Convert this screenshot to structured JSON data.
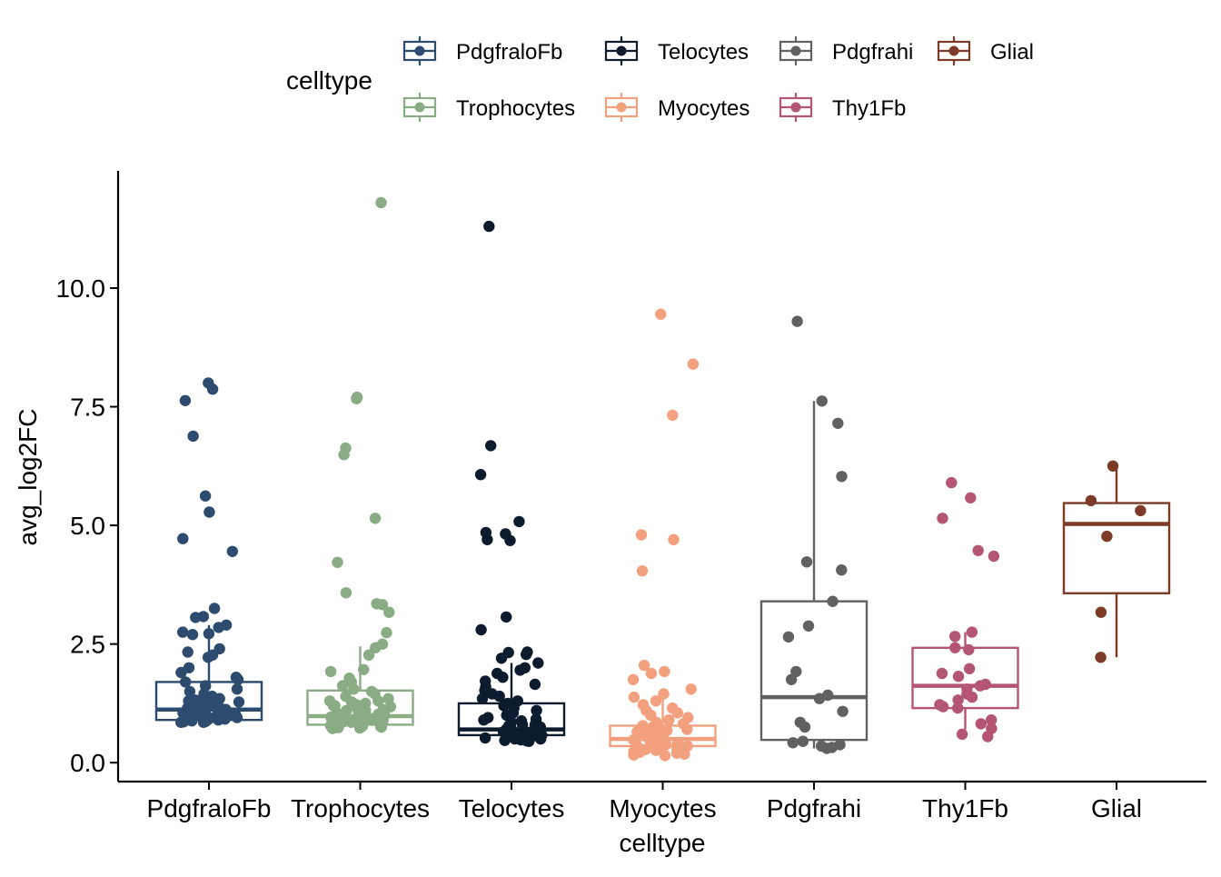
{
  "chart_data": {
    "type": "box",
    "title": "",
    "xlabel": "celltype",
    "ylabel": "avg_log2FC",
    "ylim": [
      -0.4,
      12.3
    ],
    "yticks": [
      0.0,
      2.5,
      5.0,
      7.5,
      10.0
    ],
    "ytick_labels": [
      "0.0",
      "2.5",
      "5.0",
      "7.5",
      "10.0"
    ],
    "grid": false,
    "legend": {
      "title": "celltype",
      "position": "top"
    },
    "categories": [
      "PdgfraloFb",
      "Trophocytes",
      "Telocytes",
      "Myocytes",
      "Pdgfrahi",
      "Thy1Fb",
      "Glial"
    ],
    "series": [
      {
        "name": "PdgfraloFb",
        "color": "#2c4b6e",
        "box": {
          "q1": 0.9,
          "median": 1.12,
          "q3": 1.7,
          "whisker_low": 0.85,
          "whisker_high": 2.9
        },
        "points": [
          8.0,
          7.87,
          7.63,
          6.88,
          5.62,
          5.28,
          4.72,
          4.45,
          3.25,
          3.08,
          3.06,
          2.9,
          2.85,
          2.75,
          2.72,
          2.7,
          2.4,
          2.33,
          2.27,
          2.22,
          2.0,
          1.9,
          1.8,
          1.75,
          1.7,
          1.62,
          1.55,
          1.5,
          1.45,
          1.4,
          1.35,
          1.32,
          1.3,
          1.28,
          1.25,
          1.22,
          1.2,
          1.18,
          1.15,
          1.12,
          1.1,
          1.08,
          1.05,
          1.02,
          1.0,
          1.0,
          0.98,
          0.96,
          0.95,
          0.93,
          0.92,
          0.9,
          0.9,
          0.88,
          0.87,
          0.86,
          0.85,
          0.85,
          1.15,
          1.05,
          0.95,
          1.25,
          1.1,
          0.92,
          1.35
        ]
      },
      {
        "name": "Trophocytes",
        "color": "#8aac84",
        "box": {
          "q1": 0.8,
          "median": 0.98,
          "q3": 1.52,
          "whisker_low": 0.72,
          "whisker_high": 2.45
        },
        "points": [
          11.8,
          7.7,
          7.67,
          6.63,
          6.49,
          5.15,
          4.22,
          3.58,
          3.35,
          3.33,
          3.17,
          2.74,
          2.5,
          2.42,
          2.27,
          1.96,
          1.92,
          1.78,
          1.7,
          1.62,
          1.55,
          1.5,
          1.45,
          1.4,
          1.35,
          1.3,
          1.28,
          1.25,
          1.22,
          1.2,
          1.18,
          1.15,
          1.12,
          1.1,
          1.08,
          1.05,
          1.02,
          1.0,
          0.98,
          0.96,
          0.95,
          0.93,
          0.92,
          0.9,
          0.88,
          0.86,
          0.85,
          0.83,
          0.82,
          0.8,
          0.78,
          0.77,
          0.76,
          0.75,
          0.74,
          0.73,
          0.72,
          1.1,
          0.95,
          1.2,
          0.85,
          1.0,
          0.9,
          1.3
        ]
      },
      {
        "name": "Telocytes",
        "color": "#0d1b2e",
        "box": {
          "q1": 0.58,
          "median": 0.7,
          "q3": 1.25,
          "whisker_low": 0.5,
          "whisker_high": 2.1
        },
        "points": [
          11.3,
          6.68,
          6.07,
          5.08,
          4.85,
          4.82,
          4.7,
          4.68,
          3.07,
          2.8,
          2.33,
          2.32,
          2.28,
          2.2,
          2.1,
          2.0,
          1.95,
          1.88,
          1.8,
          1.72,
          1.65,
          1.6,
          1.52,
          1.45,
          1.4,
          1.35,
          1.3,
          1.25,
          1.2,
          1.15,
          1.1,
          1.05,
          1.0,
          0.95,
          0.92,
          0.88,
          0.85,
          0.82,
          0.8,
          0.78,
          0.75,
          0.72,
          0.7,
          0.68,
          0.66,
          0.64,
          0.62,
          0.6,
          0.58,
          0.56,
          0.55,
          0.54,
          0.52,
          0.5,
          0.5,
          0.48,
          0.47,
          0.46,
          0.45,
          0.7,
          0.6,
          0.8,
          0.55,
          0.9,
          0.65
        ]
      },
      {
        "name": "Myocytes",
        "color": "#f2a07e",
        "box": {
          "q1": 0.35,
          "median": 0.5,
          "q3": 0.78,
          "whisker_low": 0.15,
          "whisker_high": 1.4
        },
        "points": [
          9.45,
          8.4,
          7.32,
          4.8,
          4.7,
          4.04,
          2.05,
          1.92,
          1.88,
          1.75,
          1.55,
          1.45,
          1.38,
          1.3,
          1.22,
          1.15,
          1.1,
          1.05,
          1.0,
          0.95,
          0.9,
          0.85,
          0.82,
          0.78,
          0.75,
          0.72,
          0.7,
          0.68,
          0.65,
          0.62,
          0.6,
          0.58,
          0.55,
          0.52,
          0.5,
          0.48,
          0.45,
          0.42,
          0.4,
          0.38,
          0.35,
          0.32,
          0.3,
          0.28,
          0.26,
          0.24,
          0.22,
          0.2,
          0.18,
          0.16,
          0.15,
          0.5,
          0.4,
          0.6,
          0.3,
          0.45
        ]
      },
      {
        "name": "Pdgfrahi",
        "color": "#616161",
        "box": {
          "q1": 0.48,
          "median": 1.38,
          "q3": 3.4,
          "whisker_low": 0.3,
          "whisker_high": 7.62
        },
        "points": [
          9.3,
          7.62,
          7.15,
          6.03,
          4.23,
          4.06,
          3.4,
          2.88,
          2.65,
          1.92,
          1.75,
          1.42,
          1.35,
          1.08,
          0.85,
          0.75,
          0.45,
          0.42,
          0.38,
          0.35,
          0.32,
          0.3
        ]
      },
      {
        "name": "Thy1Fb",
        "color": "#b55574",
        "box": {
          "q1": 1.15,
          "median": 1.62,
          "q3": 2.42,
          "whisker_low": 0.7,
          "whisker_high": 2.75
        },
        "points": [
          5.9,
          5.58,
          5.15,
          4.47,
          4.35,
          2.75,
          2.66,
          2.42,
          2.38,
          1.98,
          1.88,
          1.82,
          1.65,
          1.62,
          1.55,
          1.45,
          1.38,
          1.32,
          1.22,
          1.18,
          1.15,
          0.9,
          0.82,
          0.72,
          0.6,
          0.55
        ]
      },
      {
        "name": "Glial",
        "color": "#7d3b27",
        "box": {
          "q1": 3.57,
          "median": 5.03,
          "q3": 5.47,
          "whisker_low": 2.22,
          "whisker_high": 6.25
        },
        "points": [
          6.25,
          5.52,
          5.31,
          4.77,
          3.17,
          2.22
        ]
      }
    ]
  }
}
